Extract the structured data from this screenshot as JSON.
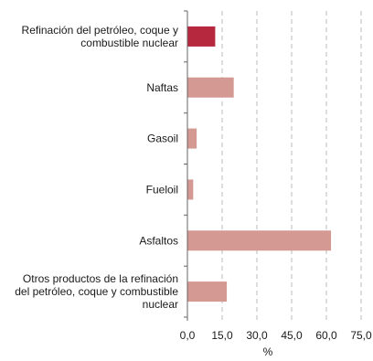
{
  "chart_data": {
    "type": "bar",
    "orientation": "horizontal",
    "title": "",
    "xlabel": "%",
    "ylabel": "",
    "xlim": [
      0,
      75
    ],
    "x_ticks": [
      "0,0",
      "15,0",
      "30,0",
      "45,0",
      "60,0",
      "75,0"
    ],
    "categories": [
      [
        "Refinación del petróleo, coque y",
        "combustible nuclear"
      ],
      [
        "Naftas"
      ],
      [
        "Gasoil"
      ],
      [
        "Fueloil"
      ],
      [
        "Asfaltos"
      ],
      [
        "Otros productos de la refinación",
        "del petróleo, coque y combustible",
        "nuclear"
      ]
    ],
    "values": [
      12,
      20,
      4,
      2.5,
      62,
      17
    ],
    "bar_colors": [
      "#b5283e",
      "#d49993",
      "#d49993",
      "#d49993",
      "#d49993",
      "#d49993"
    ],
    "grid": {
      "vertical": true,
      "style": "dashed",
      "color": "#bbbbbb"
    },
    "axis_color": "#666666",
    "label_color": "#1a1a1a",
    "legend": "none"
  }
}
